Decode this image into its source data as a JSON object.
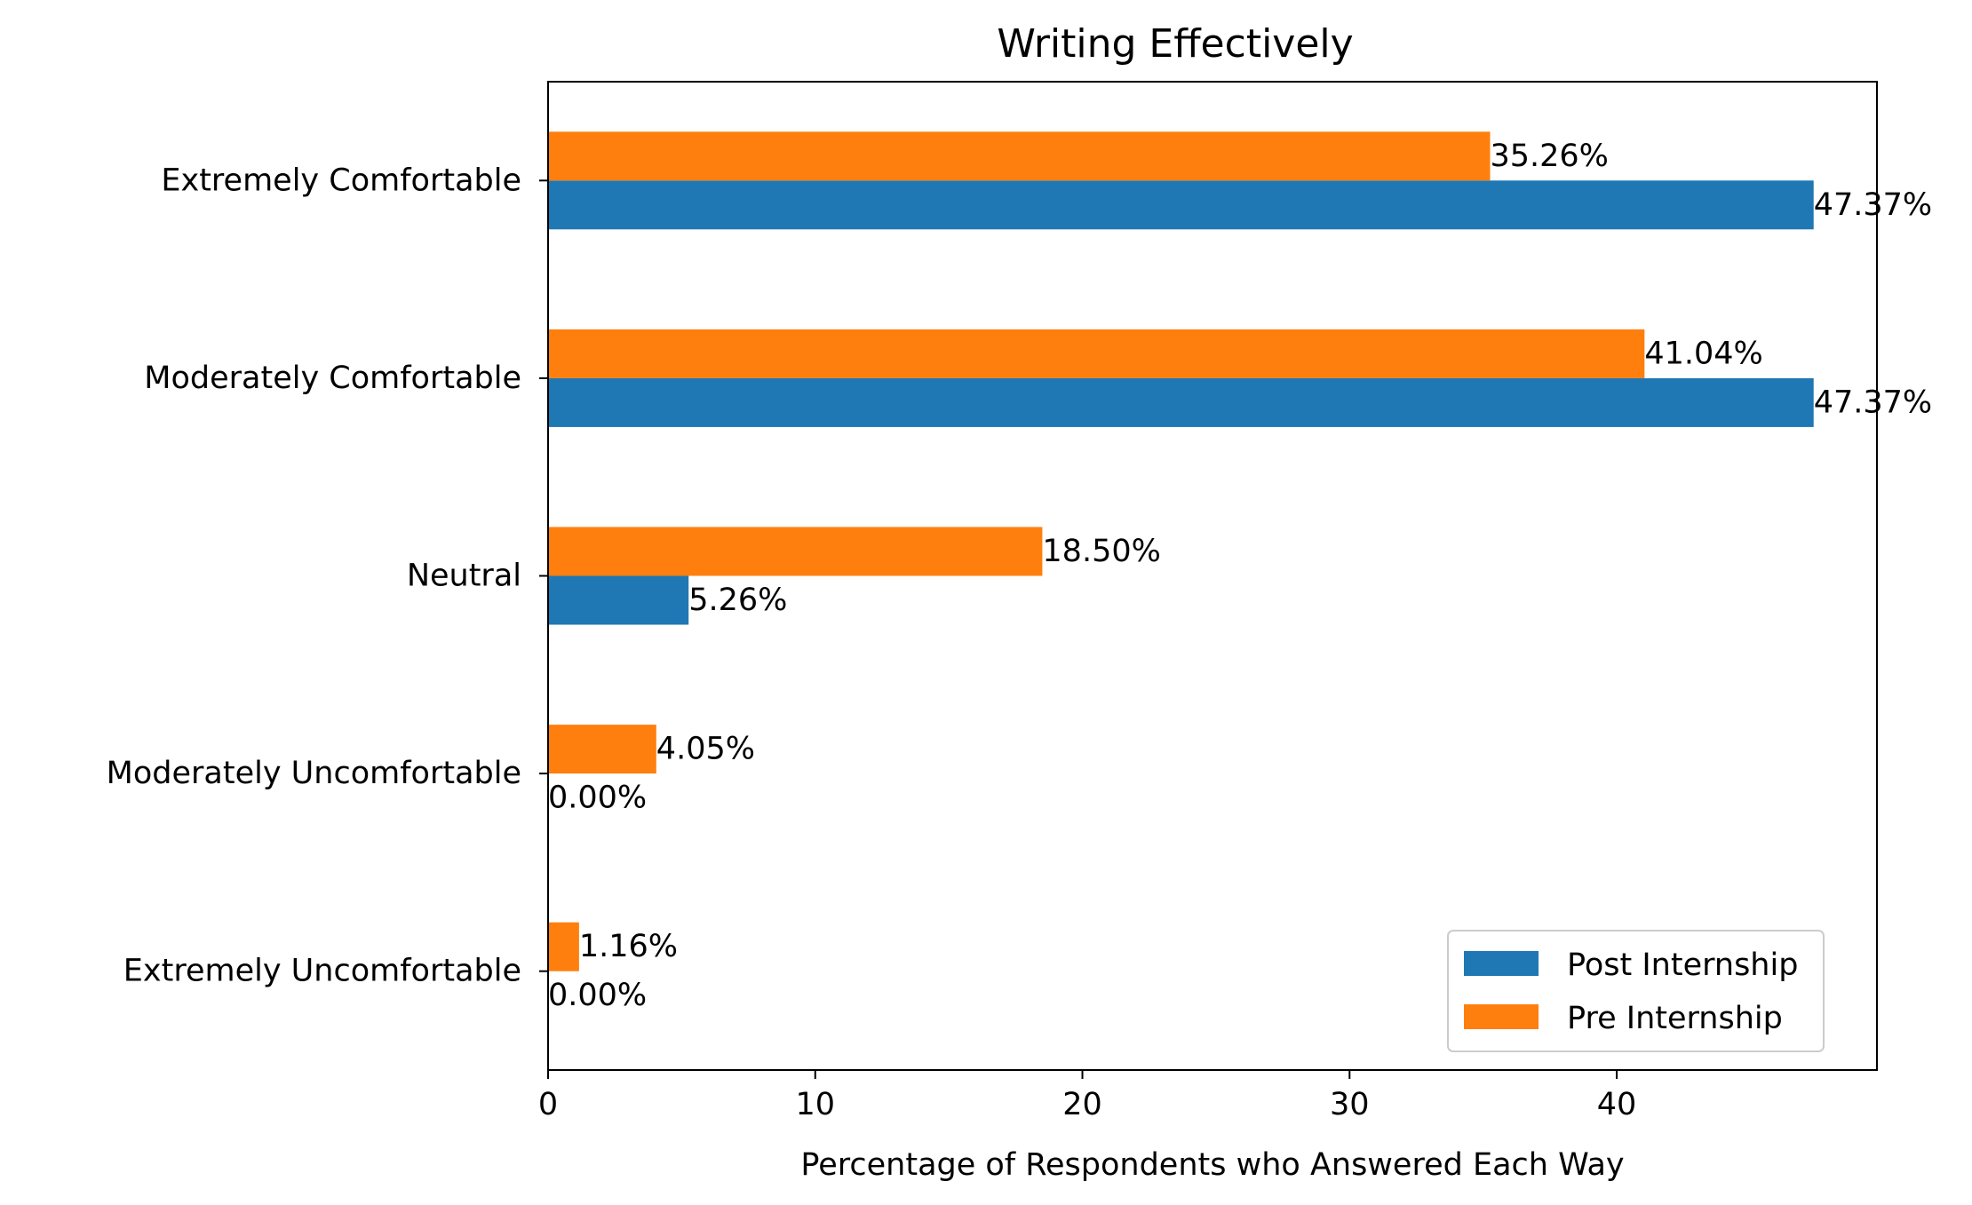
{
  "chart_data": {
    "type": "bar",
    "orientation": "horizontal",
    "title": "Writing Effectively",
    "xlabel": "Percentage of Respondents who Answered Each Way",
    "ylabel": "",
    "categories": [
      "Extremely Comfortable",
      "Moderately Comfortable",
      "Neutral",
      "Moderately Uncomfortable",
      "Extremely Uncomfortable"
    ],
    "series": [
      {
        "name": "Post Internship",
        "color": "#1f77b4",
        "values": [
          47.37,
          47.37,
          5.26,
          0.0,
          0.0
        ],
        "labels": [
          "47.37%",
          "47.37%",
          "5.26%",
          "0.00%",
          "0.00%"
        ]
      },
      {
        "name": "Pre Internship",
        "color": "#ff7f0e",
        "values": [
          35.26,
          41.04,
          18.5,
          4.05,
          1.16
        ],
        "labels": [
          "35.26%",
          "41.04%",
          "18.50%",
          "4.05%",
          "1.16%"
        ]
      }
    ],
    "xlim": [
      0,
      49.74
    ],
    "xticks": [
      0,
      10,
      20,
      30,
      40
    ],
    "xtick_labels": [
      "0",
      "10",
      "20",
      "30",
      "40"
    ],
    "grid": false,
    "legend_position": "lower-right"
  }
}
